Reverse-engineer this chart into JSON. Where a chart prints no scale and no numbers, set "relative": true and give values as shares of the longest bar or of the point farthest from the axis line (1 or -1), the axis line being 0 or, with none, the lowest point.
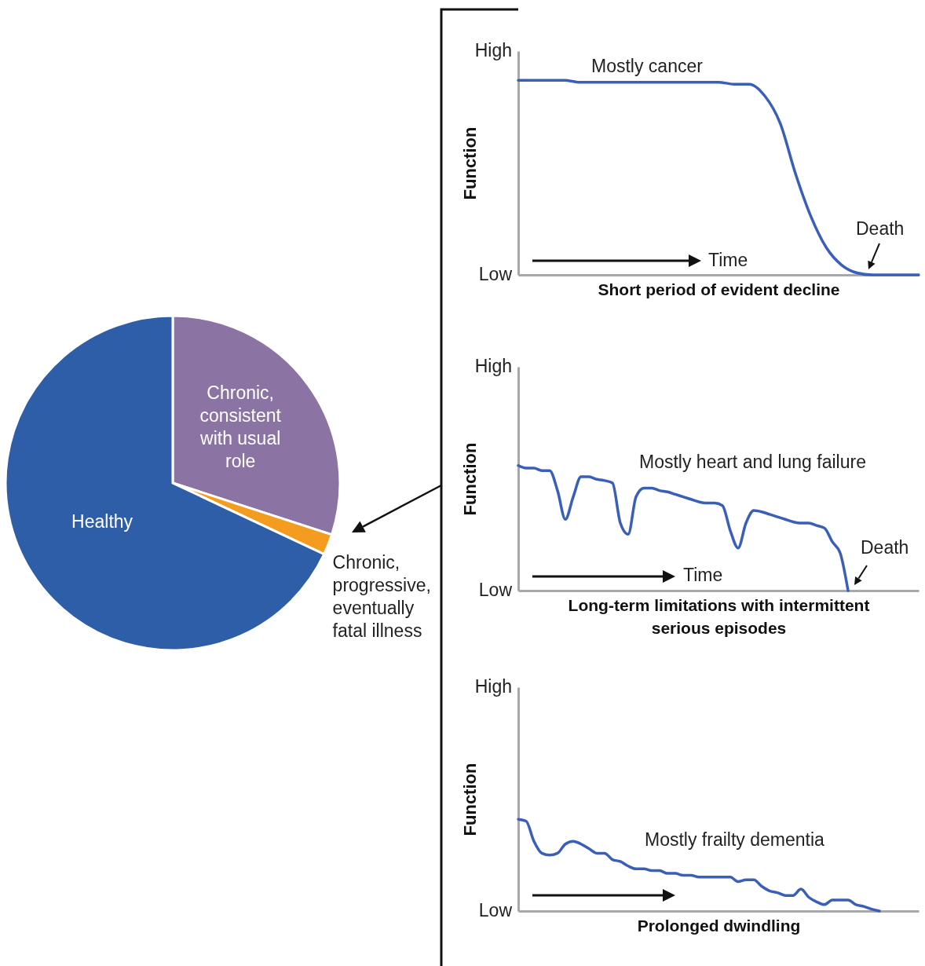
{
  "chart_data": [
    {
      "type": "pie",
      "categories": [
        "Chronic, consistent with usual role",
        "Chronic, progressive, eventually fatal illness",
        "Healthy"
      ],
      "values": [
        30,
        2,
        68
      ],
      "colors": [
        "#8b74a3",
        "#f39c1f",
        "#2e5ea8"
      ]
    },
    {
      "type": "line",
      "relative": true,
      "xlabel": "Short period of evident decline",
      "ylabel": "Function",
      "annotations": [
        "Mostly cancer",
        "Death",
        "Time",
        "High",
        "Low"
      ],
      "categories": [
        null,
        null,
        null,
        null,
        null,
        null,
        null,
        null,
        null,
        null,
        null,
        null,
        null,
        null,
        null,
        null,
        null,
        null,
        null,
        null,
        null,
        null,
        null,
        null,
        null,
        null,
        null
      ],
      "series": [
        {
          "color": "#3a5fb8",
          "values": [
            1,
            1,
            1,
            1,
            0.99,
            0.99,
            0.99,
            0.99,
            0.99,
            0.99,
            0.99,
            0.99,
            0.99,
            0.99,
            0.98,
            0.98,
            0.92,
            0.78,
            0.52,
            0.3,
            0.14,
            0.05,
            0.01,
            0,
            0,
            0,
            0
          ]
        }
      ]
    },
    {
      "type": "line",
      "relative": true,
      "xlabel": "Long-term limitations with intermittent serious episodes",
      "ylabel": "Function",
      "annotations": [
        "Mostly heart and lung failure",
        "Death",
        "Time",
        "High",
        "Low"
      ],
      "categories": [
        null,
        null,
        null,
        null,
        null,
        null,
        null,
        null,
        null,
        null,
        null,
        null,
        null,
        null,
        null,
        null,
        null,
        null,
        null,
        null,
        null,
        null,
        null,
        null,
        null,
        null,
        null,
        null,
        null,
        null,
        null,
        null,
        null,
        null,
        null,
        null,
        null,
        null,
        null,
        null,
        null,
        null,
        null,
        null,
        null,
        null,
        null,
        null,
        null,
        null,
        null,
        null
      ],
      "series": [
        {
          "color": "#3a5fb8",
          "values": [
            1,
            0.98,
            0.98,
            0.96,
            0.96,
            0.8,
            0.57,
            0.75,
            0.91,
            0.91,
            0.89,
            0.88,
            0.86,
            0.54,
            0.45,
            0.75,
            0.82,
            0.82,
            0.8,
            0.79,
            0.77,
            0.75,
            0.73,
            0.71,
            0.7,
            0.7,
            0.68,
            0.48,
            0.34,
            0.54,
            0.64,
            0.63,
            0.61,
            0.59,
            0.57,
            0.55,
            0.54,
            0.54,
            0.52,
            0.5,
            0.39,
            0.3,
            0,
            null,
            null,
            null,
            null,
            null,
            null,
            null,
            null,
            null
          ]
        }
      ]
    },
    {
      "type": "line",
      "relative": true,
      "xlabel": "Prolonged dwindling",
      "ylabel": "Function",
      "annotations": [
        "Mostly frailty dementia",
        "High",
        "Low"
      ],
      "categories": [
        null,
        null,
        null,
        null,
        null,
        null,
        null,
        null,
        null,
        null,
        null,
        null,
        null,
        null,
        null,
        null,
        null,
        null,
        null,
        null,
        null,
        null,
        null,
        null,
        null,
        null,
        null,
        null,
        null,
        null,
        null,
        null,
        null,
        null,
        null,
        null,
        null,
        null,
        null,
        null,
        null,
        null,
        null,
        null,
        null,
        null,
        null,
        null,
        null,
        null,
        null,
        null
      ],
      "series": [
        {
          "color": "#3a5fb8",
          "values": [
            1,
            0.98,
            0.76,
            0.63,
            0.61,
            0.63,
            0.73,
            0.76,
            0.73,
            0.68,
            0.63,
            0.63,
            0.56,
            0.54,
            0.49,
            0.46,
            0.46,
            0.44,
            0.44,
            0.41,
            0.41,
            0.39,
            0.39,
            0.37,
            0.37,
            0.37,
            0.37,
            0.37,
            0.32,
            0.34,
            0.34,
            0.27,
            0.22,
            0.2,
            0.17,
            0.17,
            0.24,
            0.15,
            0.1,
            0.07,
            0.12,
            0.12,
            0.12,
            0.07,
            0.05,
            0.02,
            0,
            null,
            null,
            null,
            null,
            null
          ]
        }
      ]
    }
  ]
}
